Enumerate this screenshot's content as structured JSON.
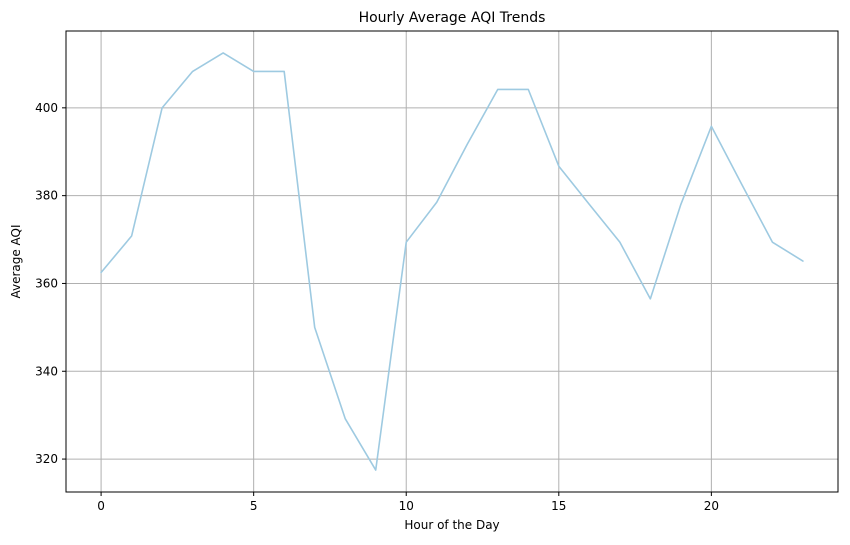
{
  "chart_data": {
    "type": "line",
    "title": "Hourly Average AQI Trends",
    "xlabel": "Hour of the Day",
    "ylabel": "Average AQI",
    "xlim": [
      -1.15,
      24.15
    ],
    "ylim": [
      312.5,
      417.5
    ],
    "xticks": [
      0,
      5,
      10,
      15,
      20
    ],
    "yticks": [
      320,
      340,
      360,
      380,
      400
    ],
    "grid": true,
    "series": [
      {
        "color": "#9ecae1",
        "x": [
          0,
          1,
          2,
          3,
          4,
          5,
          6,
          7,
          8,
          9,
          10,
          11,
          12,
          13,
          14,
          15,
          16,
          17,
          18,
          19,
          20,
          21,
          22,
          23
        ],
        "y": [
          362.5,
          370.8,
          400.0,
          408.3,
          412.5,
          408.3,
          408.3,
          350.0,
          329.2,
          317.5,
          369.4,
          378.5,
          391.7,
          404.2,
          404.2,
          386.7,
          378.0,
          369.4,
          356.5,
          378.0,
          395.8,
          382.5,
          369.4,
          365.1
        ]
      }
    ]
  }
}
